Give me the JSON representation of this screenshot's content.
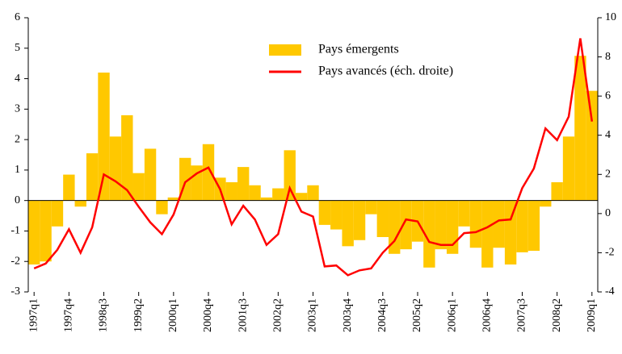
{
  "chart_data": {
    "type": "bar",
    "categories": [
      "1997q1",
      null,
      null,
      "1997q4",
      null,
      null,
      "1998q3",
      null,
      null,
      "1999q2",
      null,
      null,
      "2000q1",
      null,
      null,
      "2000q4",
      null,
      null,
      "2001q3",
      null,
      null,
      "2002q2",
      null,
      null,
      "2003q1",
      null,
      null,
      "2003q4",
      null,
      null,
      "2004q3",
      null,
      null,
      "2005q2",
      null,
      null,
      "2006q1",
      null,
      null,
      "2006q4",
      null,
      null,
      "2007q3",
      null,
      null,
      "2008q2",
      null,
      null,
      "2009q1"
    ],
    "series": [
      {
        "name": "Pays émergents",
        "type": "bar",
        "color": "#ffc800",
        "values": [
          -2.1,
          -2.0,
          -0.85,
          0.85,
          -0.2,
          1.55,
          4.2,
          2.1,
          2.8,
          0.9,
          1.7,
          -0.45,
          0.1,
          1.4,
          1.15,
          1.85,
          0.75,
          0.6,
          1.1,
          0.5,
          0.1,
          0.4,
          1.65,
          0.25,
          0.5,
          -0.8,
          -0.95,
          -1.5,
          -1.3,
          -0.45,
          -1.2,
          -1.75,
          -1.6,
          -1.35,
          -2.2,
          -1.6,
          -1.75,
          -0.85,
          -1.55,
          -2.2,
          -1.55,
          -2.1,
          -1.7,
          -1.65,
          -0.2,
          0.6,
          2.1,
          4.75,
          3.6
        ]
      },
      {
        "name": "Pays avancés (éch. droite)",
        "type": "line",
        "axis": "y2",
        "color": "#ff0000",
        "values": [
          -2.8,
          -2.55,
          -1.85,
          -0.8,
          -2.0,
          -0.7,
          2.0,
          1.65,
          1.2,
          0.35,
          -0.45,
          -1.05,
          -0.05,
          1.6,
          2.05,
          2.35,
          1.25,
          -0.55,
          0.4,
          -0.3,
          -1.6,
          -1.05,
          1.3,
          0.1,
          -0.15,
          -2.7,
          -2.65,
          -3.15,
          -2.9,
          -2.8,
          -2.0,
          -1.4,
          -0.3,
          -0.4,
          -1.45,
          -1.6,
          -1.6,
          -1.0,
          -0.95,
          -0.7,
          -0.35,
          -0.3,
          1.3,
          2.3,
          4.35,
          3.75,
          4.95,
          8.95,
          4.7
        ]
      }
    ],
    "ylim": [
      -3,
      6
    ],
    "yticks": [
      -3,
      -2,
      -1,
      0,
      1,
      2,
      3,
      4,
      5,
      6
    ],
    "y2lim": [
      -4,
      10
    ],
    "y2ticks": [
      -4,
      -2,
      0,
      2,
      4,
      6,
      8,
      10
    ],
    "legend": "top-right"
  }
}
